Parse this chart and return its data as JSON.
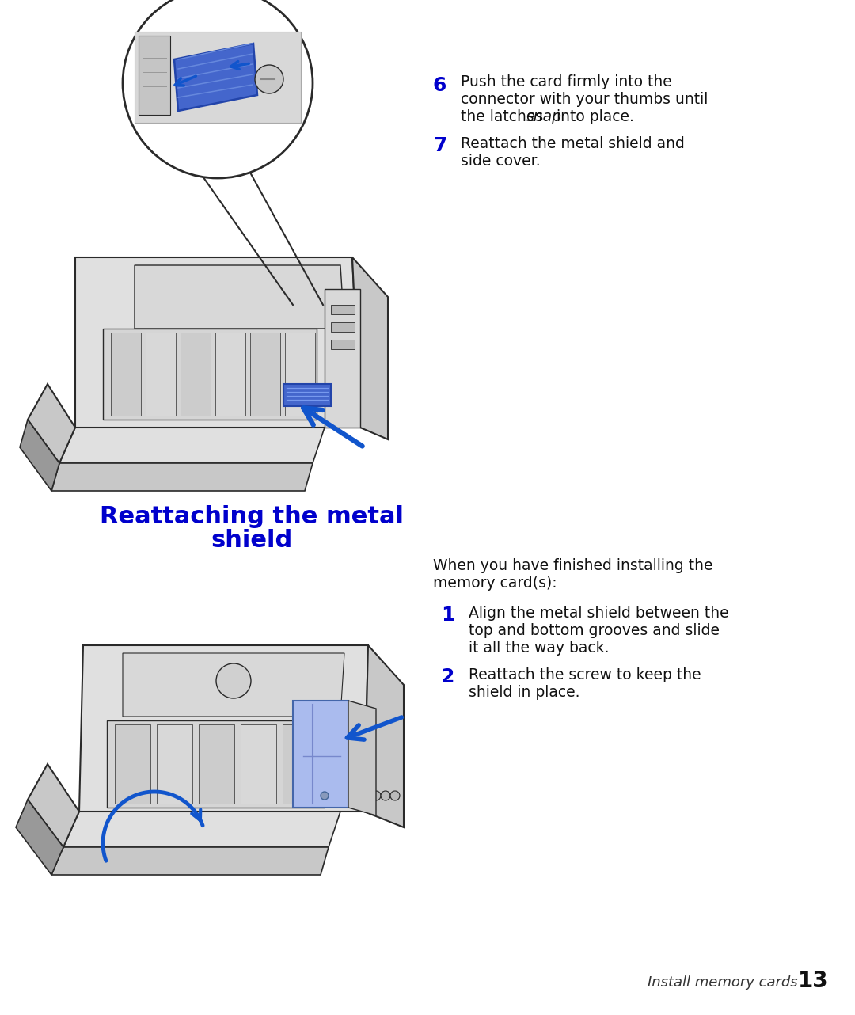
{
  "bg_color": "#ffffff",
  "title_line1": "Reattaching the metal",
  "title_line2": "shield",
  "title_color": "#0000cc",
  "title_fontsize": 22,
  "step6_num": "6",
  "step6_line1": "Push the card firmly into the",
  "step6_line2": "connector with your thumbs until",
  "step6_line3a": "the latches ",
  "step6_italic": "snap",
  "step6_line3b": " into place.",
  "step7_num": "7",
  "step7_line1": "Reattach the metal shield and",
  "step7_line2": "side cover.",
  "intro_line1": "When you have finished installing the",
  "intro_line2": "memory card(s):",
  "step1_num": "1",
  "step1_line1": "Align the metal shield between the",
  "step1_line2": "top and bottom grooves and slide",
  "step1_line3": "it all the way back.",
  "step2_num": "2",
  "step2_line1": "Reattach the screw to keep the",
  "step2_line2": "shield in place.",
  "footer_italic": "Install memory cards",
  "footer_num": "13",
  "num_color": "#0000cc",
  "text_color": "#111111",
  "line_color": "#2a2a2a",
  "light_gray": "#e0e0e0",
  "mid_gray": "#c8c8c8",
  "dark_gray": "#999999",
  "blue_card": "#4466cc",
  "blue_arrow": "#1155cc",
  "main_fs": 13.5,
  "num_fs": 18,
  "footer_fs": 13
}
